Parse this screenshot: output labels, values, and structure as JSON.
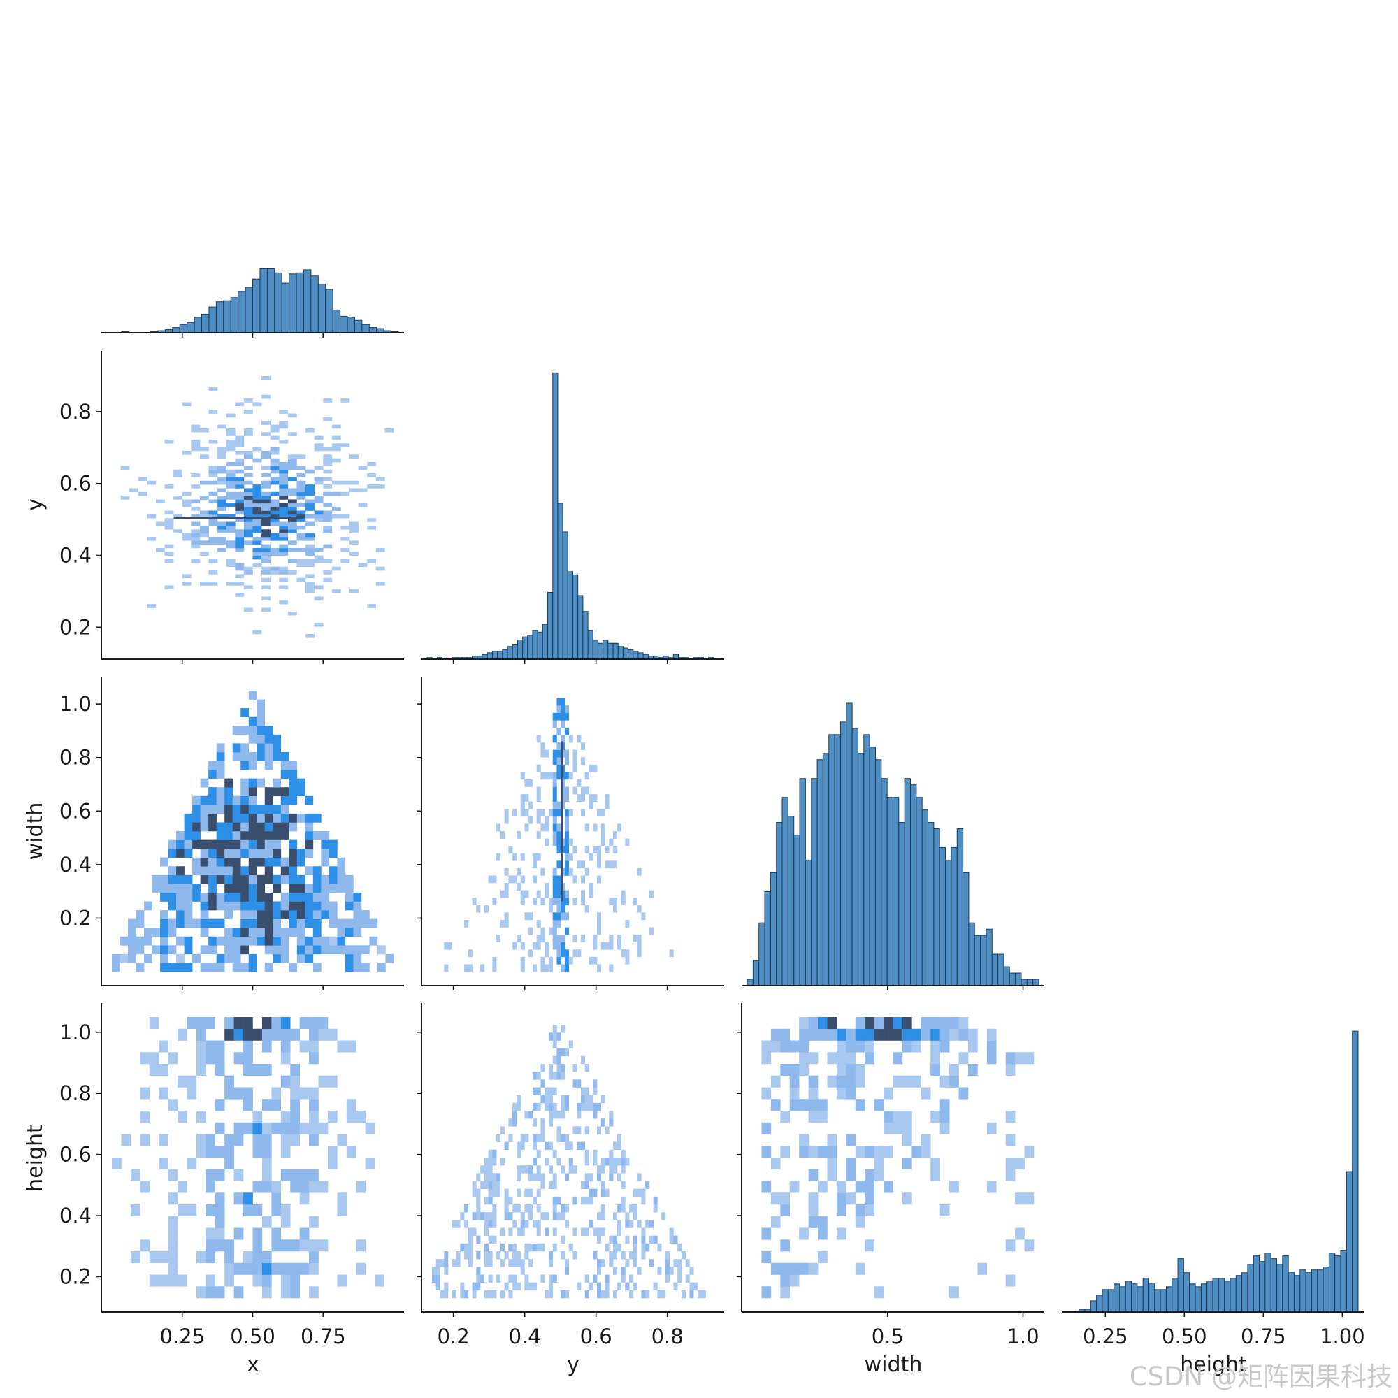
{
  "chart_data": {
    "type": "pairplot",
    "layout": "corner",
    "variables": [
      "x",
      "y",
      "width",
      "height"
    ],
    "colors": {
      "hist_fill": "#4f8fc4",
      "hist_edge": "#1f3b57",
      "heat_low": "#a9c8ef",
      "heat_mid": "#2e8fe6",
      "heat_high": "#3a4f6e"
    },
    "panels": [
      {
        "id": "diag-x",
        "row": 0,
        "col": 0,
        "type": "histogram",
        "variable": "x",
        "x_range": [
          0,
          1
        ],
        "bins": 40,
        "bin_edges": [
          0.0,
          1.0
        ],
        "counts": [
          0,
          0,
          1,
          0,
          0,
          0,
          1,
          2,
          3,
          5,
          8,
          10,
          15,
          18,
          25,
          30,
          31,
          34,
          40,
          44,
          52,
          62,
          62,
          58,
          48,
          57,
          58,
          61,
          55,
          47,
          42,
          22,
          16,
          15,
          12,
          8,
          5,
          4,
          2,
          1
        ],
        "ylim": [
          0,
          65
        ]
      },
      {
        "id": "x-vs-y",
        "row": 1,
        "col": 0,
        "type": "hist2d",
        "x_variable": "x",
        "y_variable": "y",
        "x_range": [
          0,
          1
        ],
        "y_range": [
          0.15,
          0.93
        ],
        "y_ticks": [
          0.2,
          0.4,
          0.6,
          0.8
        ],
        "note": "dense band around y = 0.5"
      },
      {
        "id": "diag-y",
        "row": 1,
        "col": 1,
        "type": "histogram",
        "variable": "y",
        "x_range": [
          0.14,
          0.93
        ],
        "bins": 58,
        "counts": [
          1,
          0,
          1,
          0,
          0,
          1,
          1,
          1,
          1,
          2,
          2,
          3,
          4,
          5,
          5,
          6,
          8,
          9,
          12,
          14,
          15,
          18,
          17,
          22,
          42,
          180,
          98,
          80,
          55,
          53,
          40,
          30,
          18,
          12,
          10,
          12,
          10,
          10,
          8,
          7,
          6,
          5,
          4,
          3,
          2,
          2,
          1,
          2,
          1,
          3,
          1,
          1,
          0,
          1,
          1,
          0,
          1,
          0
        ],
        "ylim": [
          0,
          185
        ]
      },
      {
        "id": "x-vs-width",
        "row": 2,
        "col": 0,
        "type": "hist2d",
        "x_variable": "x",
        "y_variable": "width",
        "x_range": [
          0,
          1
        ],
        "y_range": [
          0.0,
          1.05
        ],
        "y_ticks": [
          0.2,
          0.4,
          0.6,
          0.8,
          1.0
        ],
        "note": "triangular shape, width <= 2*min(x, 1-x)"
      },
      {
        "id": "y-vs-width",
        "row": 2,
        "col": 1,
        "type": "hist2d",
        "x_variable": "y",
        "y_variable": "width",
        "x_range": [
          0.14,
          0.93
        ],
        "y_range": [
          0.0,
          1.05
        ],
        "note": "vertical spike at y = 0.5"
      },
      {
        "id": "diag-width",
        "row": 2,
        "col": 2,
        "type": "histogram",
        "variable": "width",
        "x_range": [
          0.0,
          1.04
        ],
        "bins": 50,
        "counts": [
          1,
          4,
          10,
          15,
          18,
          26,
          30,
          27,
          24,
          33,
          20,
          33,
          36,
          37,
          40,
          40,
          42,
          45,
          41,
          37,
          40,
          38,
          36,
          33,
          30,
          30,
          26,
          33,
          32,
          30,
          28,
          26,
          25,
          22,
          20,
          22,
          25,
          18,
          10,
          8,
          8,
          9,
          5,
          5,
          3,
          2,
          2,
          1,
          1,
          1
        ],
        "ylim": [
          0,
          47
        ]
      },
      {
        "id": "x-vs-height",
        "row": 3,
        "col": 0,
        "type": "hist2d",
        "x_variable": "x",
        "y_variable": "height",
        "x_range": [
          0,
          1
        ],
        "y_range": [
          0.13,
          1.05
        ],
        "y_ticks": [
          0.2,
          0.4,
          0.6,
          0.8,
          1.0
        ],
        "x_ticks": [
          0.25,
          0.5,
          0.75
        ],
        "note": "densest at height = 1.0"
      },
      {
        "id": "y-vs-height",
        "row": 3,
        "col": 1,
        "type": "hist2d",
        "x_variable": "y",
        "y_variable": "height",
        "x_range": [
          0.14,
          0.93
        ],
        "y_range": [
          0.13,
          1.05
        ],
        "x_ticks": [
          0.2,
          0.4,
          0.6,
          0.8
        ],
        "note": "triangular shape with peak at y = 0.5, height = 1.0"
      },
      {
        "id": "width-vs-height",
        "row": 3,
        "col": 2,
        "type": "hist2d",
        "x_variable": "width",
        "y_variable": "height",
        "x_range": [
          0.0,
          1.04
        ],
        "y_range": [
          0.13,
          1.05
        ],
        "x_ticks": [
          0.5,
          1.0
        ],
        "note": "dense row at height = 1.0 and low width"
      },
      {
        "id": "diag-height",
        "row": 3,
        "col": 3,
        "type": "histogram",
        "variable": "height",
        "x_range": [
          0.13,
          1.05
        ],
        "bins": 50,
        "counts": [
          0,
          0,
          1,
          1,
          4,
          6,
          8,
          8,
          10,
          9,
          11,
          10,
          9,
          12,
          10,
          8,
          8,
          9,
          12,
          19,
          14,
          10,
          9,
          10,
          11,
          12,
          12,
          11,
          12,
          13,
          14,
          17,
          20,
          18,
          21,
          19,
          17,
          20,
          14,
          13,
          15,
          14,
          15,
          15,
          16,
          21,
          20,
          22,
          50,
          100
        ],
        "ylim": [
          0,
          105
        ]
      }
    ],
    "tick_labels": {
      "x_axis_x": [
        "0.25",
        "0.50",
        "0.75"
      ],
      "x_axis_y": [
        "0.2",
        "0.4",
        "0.6",
        "0.8"
      ],
      "x_axis_width": [
        "0.5",
        "1.0"
      ],
      "x_axis_height": [
        "0.25",
        "0.50",
        "0.75",
        "1.00"
      ],
      "y_axis_y": [
        "0.2",
        "0.4",
        "0.6",
        "0.8"
      ],
      "y_axis_width": [
        "0.2",
        "0.4",
        "0.6",
        "0.8",
        "1.0"
      ],
      "y_axis_height": [
        "0.2",
        "0.4",
        "0.6",
        "0.8",
        "1.0"
      ]
    },
    "axis_labels": {
      "x_bottom": [
        "x",
        "y",
        "width",
        "height"
      ],
      "y_left": [
        "y",
        "width",
        "height"
      ]
    },
    "grid": false
  },
  "watermark": "CSDN @矩阵因果科技"
}
